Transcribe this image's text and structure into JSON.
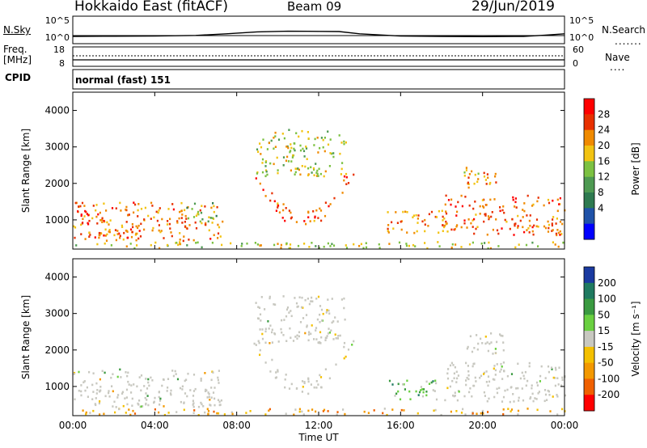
{
  "header": {
    "radar": "Hokkaido East (fitACF)",
    "beam": "Beam 09",
    "date": "29/Jun/2019"
  },
  "strip": {
    "nsky_label": "N.Sky",
    "nsky_ticks": [
      "10^5",
      "10^0"
    ],
    "nsearch_label": "N.Search",
    "nsearch_ticks": [
      "10^5",
      "10^0"
    ],
    "freq_label_1": "Freq.",
    "freq_label_2": "[MHz]",
    "freq_ticks": [
      "18",
      "8"
    ],
    "nave_label": "Nave",
    "nave_ticks": [
      "60",
      "0"
    ],
    "cpid_label": "CPID",
    "cpid_value": "normal (fast) 151"
  },
  "chart_data": [
    {
      "type": "heatmap",
      "quantity": "Power",
      "colorbar_title": "Power [dB]",
      "colorbar_ticks": [
        "28",
        "24",
        "20",
        "16",
        "12",
        "8",
        "4"
      ],
      "colorscale": [
        "#0000ff",
        "#1f52a8",
        "#2e7a50",
        "#4e9a52",
        "#7cc142",
        "#f2c312",
        "#f08a00",
        "#e83000",
        "#ff0000"
      ],
      "ylabel": "Slant Range [km]",
      "yticks": [
        "4000",
        "3000",
        "2000",
        "1000"
      ],
      "ylim": [
        200,
        4500
      ],
      "xlim": [
        0,
        24
      ],
      "regions": [
        {
          "t0": 0,
          "t1": 7.3,
          "r0": 450,
          "r1": 1500,
          "level": 0.78
        },
        {
          "t0": 0,
          "t1": 1.6,
          "r0": 900,
          "r1": 1300,
          "level": 0.95
        },
        {
          "t0": 1.2,
          "t1": 3.2,
          "r0": 420,
          "r1": 750,
          "level": 0.9
        },
        {
          "t0": 5.5,
          "t1": 7.0,
          "r0": 900,
          "r1": 1500,
          "level": 0.45
        },
        {
          "t0": 8.7,
          "t1": 13.7,
          "r0": 800,
          "r1": 2300,
          "level": 0.85,
          "shape": "bowl"
        },
        {
          "t0": 8.9,
          "t1": 13.3,
          "r0": 2200,
          "r1": 3500,
          "level": 0.55
        },
        {
          "t0": 15.3,
          "t1": 18.3,
          "r0": 650,
          "r1": 1300,
          "level": 0.75
        },
        {
          "t0": 18.0,
          "t1": 24,
          "r0": 600,
          "r1": 1700,
          "level": 0.82
        },
        {
          "t0": 19.0,
          "t1": 21.0,
          "r0": 1900,
          "r1": 2500,
          "level": 0.7
        },
        {
          "t0": 0,
          "t1": 24,
          "r0": 240,
          "r1": 420,
          "level": 0.55
        }
      ]
    },
    {
      "type": "heatmap",
      "quantity": "Velocity",
      "colorbar_title": "Velocity [m s⁻¹]",
      "colorbar_ticks": [
        "200",
        "100",
        "50",
        "15",
        "-15",
        "-50",
        "-100",
        "-200"
      ],
      "colorscale": [
        "#ff0000",
        "#f06000",
        "#f39800",
        "#f4c000",
        "#c8c8c0",
        "#6ad040",
        "#3a9a40",
        "#1f7a60",
        "#1a3aa0"
      ],
      "ylabel": "Slant Range [km]",
      "yticks": [
        "4000",
        "3000",
        "2000",
        "1000"
      ],
      "ylim": [
        200,
        4500
      ],
      "xlim": [
        0,
        24
      ],
      "xlabel": "Time UT",
      "xticks": [
        "00:00",
        "04:00",
        "08:00",
        "12:00",
        "16:00",
        "20:00",
        "00:00"
      ],
      "regions": [
        {
          "t0": 0,
          "t1": 7.3,
          "r0": 450,
          "r1": 1500,
          "level": 0.5
        },
        {
          "t0": 8.7,
          "t1": 13.7,
          "r0": 800,
          "r1": 2300,
          "level": 0.5,
          "shape": "bowl"
        },
        {
          "t0": 8.9,
          "t1": 13.3,
          "r0": 2200,
          "r1": 3500,
          "level": 0.5
        },
        {
          "t0": 15.3,
          "t1": 17.8,
          "r0": 650,
          "r1": 1250,
          "level": 0.66
        },
        {
          "t0": 18.0,
          "t1": 24,
          "r0": 600,
          "r1": 1700,
          "level": 0.5
        },
        {
          "t0": 19.0,
          "t1": 21.0,
          "r0": 1900,
          "r1": 2500,
          "level": 0.5
        },
        {
          "t0": 0,
          "t1": 24,
          "r0": 240,
          "r1": 420,
          "level": 0.32
        }
      ]
    }
  ],
  "nsky_profile": {
    "t": [
      0,
      2,
      4,
      6,
      7.5,
      9,
      10.5,
      12,
      13,
      14,
      16,
      18,
      20,
      22,
      23,
      24
    ],
    "level": [
      0.08,
      0.1,
      0.12,
      0.18,
      0.35,
      0.55,
      0.62,
      0.6,
      0.58,
      0.35,
      0.12,
      0.08,
      0.06,
      0.08,
      0.2,
      0.35
    ]
  }
}
